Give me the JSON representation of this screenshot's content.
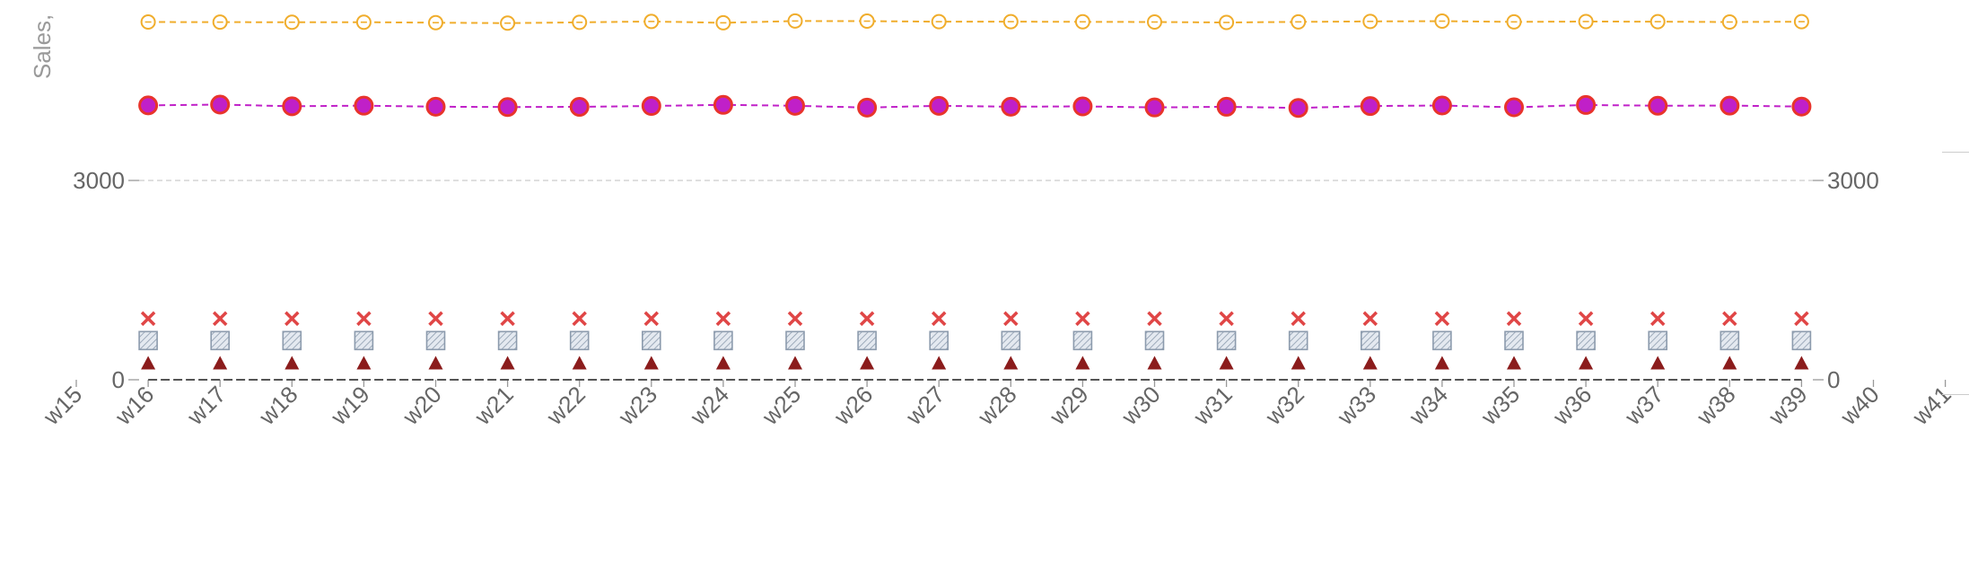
{
  "chart_data": {
    "type": "line",
    "ylabel": "Sales,",
    "x_ticks": [
      "w15",
      "w16",
      "w17",
      "w18",
      "w19",
      "w20",
      "w21",
      "w22",
      "w23",
      "w24",
      "w25",
      "w26",
      "w27",
      "w28",
      "w29",
      "w30",
      "w31",
      "w32",
      "w33",
      "w34",
      "w35",
      "w36",
      "w37",
      "w38",
      "w39",
      "w40",
      "w41"
    ],
    "categories": [
      "w16",
      "w17",
      "w18",
      "w19",
      "w20",
      "w21",
      "w22",
      "w23",
      "w24",
      "w25",
      "w26",
      "w27",
      "w28",
      "w29",
      "w30",
      "w31",
      "w32",
      "w33",
      "w34",
      "w35",
      "w36",
      "w37",
      "w38",
      "w39"
    ],
    "y_ticks": [
      0,
      3000
    ],
    "grid": "horizontal dashed",
    "legend": "none",
    "series": [
      {
        "marker": "circle-open",
        "color": "#f0ad2c",
        "line": "dashed",
        "values": [
          5385,
          5383,
          5382,
          5382,
          5375,
          5368,
          5380,
          5393,
          5373,
          5400,
          5398,
          5390,
          5390,
          5388,
          5385,
          5378,
          5387,
          5394,
          5398,
          5387,
          5392,
          5390,
          5385,
          5390
        ]
      },
      {
        "marker": "circle-filled",
        "color": "#c020c8",
        "edge_color": "#e8342c",
        "line": "dashed",
        "values": [
          4130,
          4142,
          4117,
          4126,
          4110,
          4105,
          4108,
          4121,
          4138,
          4124,
          4097,
          4124,
          4110,
          4115,
          4099,
          4109,
          4092,
          4120,
          4128,
          4101,
          4136,
          4125,
          4127,
          4112
        ]
      },
      {
        "marker": "x",
        "color": "#e04646",
        "line": "none",
        "values": [
          920,
          920,
          920,
          920,
          920,
          920,
          920,
          920,
          920,
          920,
          920,
          920,
          920,
          920,
          920,
          920,
          920,
          920,
          920,
          920,
          920,
          920,
          920,
          920
        ]
      },
      {
        "marker": "square-hatched",
        "color": "#8c9bad",
        "line": "none",
        "values": [
          590,
          590,
          590,
          590,
          590,
          590,
          590,
          590,
          590,
          590,
          590,
          590,
          590,
          590,
          590,
          590,
          590,
          590,
          590,
          590,
          590,
          590,
          590,
          590
        ]
      },
      {
        "marker": "triangle",
        "color": "#8b1c1c",
        "line": "none",
        "values": [
          250,
          250,
          250,
          250,
          250,
          250,
          250,
          250,
          250,
          250,
          250,
          250,
          250,
          250,
          250,
          250,
          250,
          250,
          250,
          250,
          250,
          250,
          250,
          250
        ]
      },
      {
        "marker": "none",
        "color": "#555555",
        "line": "dashed",
        "values": [
          0,
          0,
          0,
          0,
          0,
          0,
          0,
          0,
          0,
          0,
          0,
          0,
          0,
          0,
          0,
          0,
          0,
          0,
          0,
          0,
          0,
          0,
          0,
          0
        ]
      }
    ]
  }
}
